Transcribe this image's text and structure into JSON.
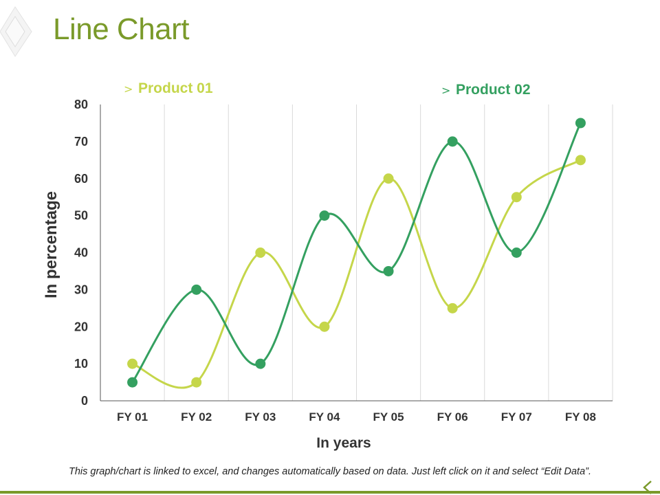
{
  "slide": {
    "title": "Line Chart",
    "footer_note": "This graph/chart is linked to excel, and changes automatically based on data. Just left click on it and select “Edit Data”."
  },
  "colors": {
    "title": "#7a9a2a",
    "product_01": "#c5d64a",
    "product_02": "#34a060",
    "axis_text": "#333333",
    "grid": "#d9d9d9",
    "bottom_bar": "#7a9a2a"
  },
  "chart_data": {
    "type": "line",
    "smooth": true,
    "title": "",
    "xlabel": "In years",
    "ylabel": "In percentage",
    "categories": [
      "FY 01",
      "FY 02",
      "FY 03",
      "FY 04",
      "FY 05",
      "FY 06",
      "FY 07",
      "FY 08"
    ],
    "y_ticks": [
      0,
      10,
      20,
      30,
      40,
      50,
      60,
      70,
      80
    ],
    "ylim": [
      0,
      80
    ],
    "grid": "vertical",
    "legend_marker": ">",
    "series": [
      {
        "name": "Product 01",
        "color": "#c5d64a",
        "values": [
          10,
          5,
          40,
          20,
          60,
          25,
          55,
          65
        ]
      },
      {
        "name": "Product 02",
        "color": "#34a060",
        "values": [
          5,
          30,
          10,
          50,
          35,
          70,
          40,
          75
        ]
      }
    ]
  }
}
